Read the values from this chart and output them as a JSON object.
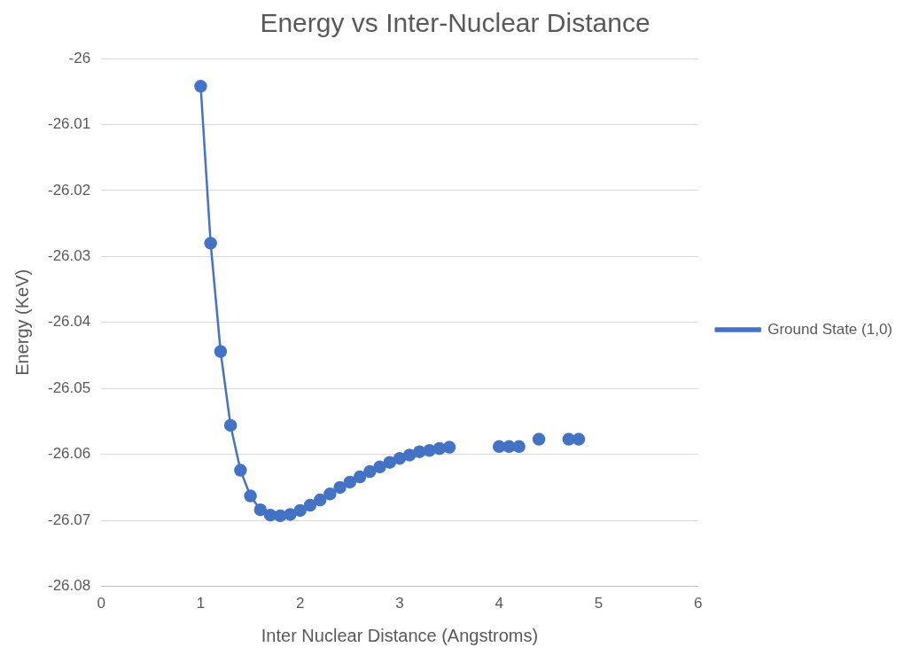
{
  "chart_data": {
    "type": "line",
    "title": "Energy vs Inter-Nuclear Distance",
    "xlabel": "Inter Nuclear Distance (Angstroms)",
    "ylabel": "Energy (KeV)",
    "x": [
      1,
      1.1,
      1.2,
      1.3,
      1.4,
      1.5,
      1.6,
      1.7,
      1.8,
      1.9,
      2,
      2.1,
      2.2,
      2.3,
      2.4,
      2.5,
      2.6,
      2.7,
      2.8,
      2.9,
      3,
      3.1,
      3.2,
      3.3,
      3.4,
      3.5,
      3.6,
      3.7,
      3.8,
      3.9,
      4,
      4.1,
      4.2,
      4.3,
      4.4,
      4.5,
      4.6,
      4.7,
      4.8
    ],
    "series": [
      {
        "name": "Ground State (1,0)",
        "color": "#4472c4",
        "values": [
          -26.0042,
          -26.028,
          -26.0444,
          -26.0556,
          -26.0624,
          -26.0663,
          -26.0684,
          -26.0692,
          -26.0693,
          -26.0691,
          -26.0685,
          -26.0677,
          -26.0669,
          -26.066,
          -26.065,
          -26.0642,
          -26.0634,
          -26.0626,
          -26.0619,
          -26.0612,
          -26.0606,
          -26.0601,
          -26.0596,
          -26.0594,
          -26.0591,
          -26.0589,
          null,
          null,
          null,
          null,
          -26.0588,
          -26.0588,
          -26.0588,
          null,
          -26.0577,
          null,
          null,
          -26.0577,
          -26.0577
        ]
      }
    ],
    "xlim": [
      0,
      6
    ],
    "xticks": [
      0,
      1,
      2,
      3,
      4,
      5,
      6
    ],
    "ylim": [
      -26.08,
      -26
    ],
    "yticks": [
      -26.08,
      -26.07,
      -26.06,
      -26.05,
      -26.04,
      -26.03,
      -26.02,
      -26.01,
      -26
    ],
    "grid": "y",
    "legend": "right",
    "marker": "circle",
    "line_style": "solid"
  }
}
